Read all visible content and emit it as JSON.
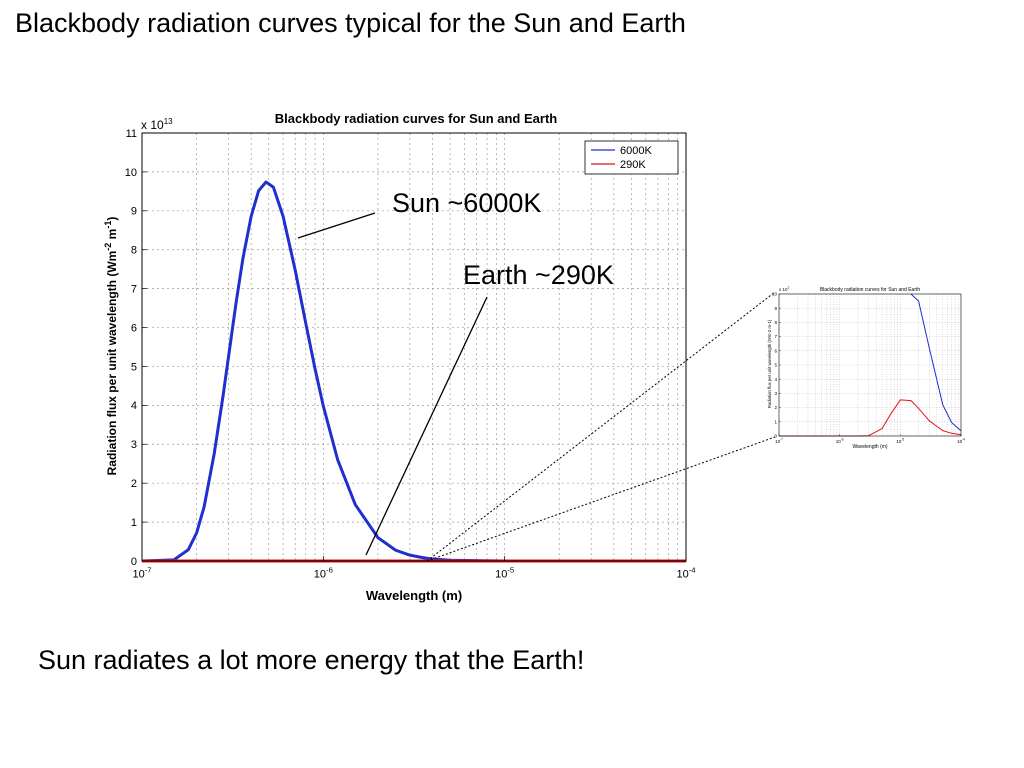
{
  "slide": {
    "title": "Blackbody radiation curves typical for the Sun and Earth",
    "caption": "Sun radiates a lot more energy that the Earth!",
    "annotations": {
      "sun": "Sun ~6000K",
      "earth": "Earth ~290K"
    }
  },
  "colors": {
    "sun_series": "#1f2fd0",
    "earth_series": "#e01515",
    "grid": "#9a9a9a",
    "axis": "#000000"
  },
  "chart_data": [
    {
      "type": "line",
      "title": "Blackbody radiation curves for Sun and Earth",
      "xlabel": "Wavelength (m)",
      "ylabel": "Radiation flux per unit wavelength (Wm-2 m-1)",
      "ylabel_parts": {
        "pre": "Radiation flux per unit wavelength (Wm",
        "e1": "-2",
        "mid": " m",
        "e2": "-1",
        "post": ")"
      },
      "x_scale": "log",
      "xlim": [
        1e-07,
        0.0001
      ],
      "ylim": [
        0,
        11
      ],
      "y_multiplier": {
        "base": "x 10",
        "exponent": "13"
      },
      "x_ticks": [
        {
          "value": 1e-07,
          "base": "10",
          "exp": "-7"
        },
        {
          "value": 1e-06,
          "base": "10",
          "exp": "-6"
        },
        {
          "value": 1e-05,
          "base": "10",
          "exp": "-5"
        },
        {
          "value": 0.0001,
          "base": "10",
          "exp": "-4"
        }
      ],
      "y_ticks": [
        0,
        1,
        2,
        3,
        4,
        5,
        6,
        7,
        8,
        9,
        10,
        11
      ],
      "grid": true,
      "legend_position": "top-right",
      "series": [
        {
          "name": "6000K",
          "color_key": "sun_series",
          "x": [
            1e-07,
            1.5e-07,
            1.8e-07,
            2e-07,
            2.2e-07,
            2.5e-07,
            2.8e-07,
            3e-07,
            3.3e-07,
            3.6e-07,
            4e-07,
            4.4e-07,
            4.83e-07,
            5.3e-07,
            6e-07,
            7e-07,
            8e-07,
            9e-07,
            1e-06,
            1.2e-06,
            1.5e-06,
            2e-06,
            2.5e-06,
            3e-06,
            3.5e-06,
            4e-06,
            5e-06,
            7e-06,
            1e-05,
            2e-05,
            5e-05,
            0.0001
          ],
          "y": [
            0.0,
            0.03,
            0.29,
            0.72,
            1.39,
            2.75,
            4.25,
            5.25,
            6.63,
            7.77,
            8.86,
            9.52,
            9.74,
            9.61,
            8.86,
            7.47,
            6.11,
            4.94,
            3.98,
            2.6,
            1.45,
            0.6,
            0.28,
            0.15,
            0.09,
            0.05,
            0.02,
            0.01,
            0.0,
            0.0,
            0.0,
            0.0
          ]
        },
        {
          "name": "290K",
          "color_key": "earth_series",
          "x": [
            1e-07,
            1.5e-06,
            3e-06,
            5e-06,
            1e-05,
            2e-05,
            5e-05,
            0.0001
          ],
          "y": [
            0.0,
            0.0,
            0.0,
            0.0,
            0.0,
            0.0,
            0.0,
            0.0
          ]
        }
      ]
    },
    {
      "type": "line",
      "role": "inset-zoom",
      "title": "Blackbody radiation curves for Sun and Earth",
      "xlabel": "Wavelength (m)",
      "ylabel": "Radiation flux per unit wavelength (Wm-2 m-1)",
      "x_scale": "log",
      "xlim": [
        1e-07,
        0.0001
      ],
      "ylim": [
        0,
        10
      ],
      "y_multiplier": {
        "base": "x 10",
        "exponent": "7"
      },
      "x_ticks": [
        {
          "value": 1e-07,
          "base": "10",
          "exp": "-7"
        },
        {
          "value": 1e-06,
          "base": "10",
          "exp": "-6"
        },
        {
          "value": 1e-05,
          "base": "10",
          "exp": "-5"
        },
        {
          "value": 0.0001,
          "base": "10",
          "exp": "-4"
        }
      ],
      "y_ticks": [
        0,
        1,
        2,
        3,
        4,
        5,
        6,
        7,
        8,
        9,
        10
      ],
      "grid": true,
      "series": [
        {
          "name": "6000K",
          "color_key": "sun_series",
          "x": [
            1.5e-05,
            2e-05,
            3e-05,
            5e-05,
            7e-05,
            0.0001
          ],
          "y": [
            10.0,
            9.5,
            6.2,
            2.2,
            0.95,
            0.37
          ]
        },
        {
          "name": "290K",
          "color_key": "earth_series",
          "x": [
            1e-07,
            2e-06,
            3e-06,
            5e-06,
            7e-06,
            1e-05,
            1.5e-05,
            2e-05,
            3e-05,
            5e-05,
            7e-05,
            0.0001
          ],
          "y": [
            0.0,
            0.0,
            0.02,
            0.52,
            1.57,
            2.54,
            2.49,
            1.94,
            1.07,
            0.38,
            0.19,
            0.09
          ]
        }
      ]
    }
  ]
}
